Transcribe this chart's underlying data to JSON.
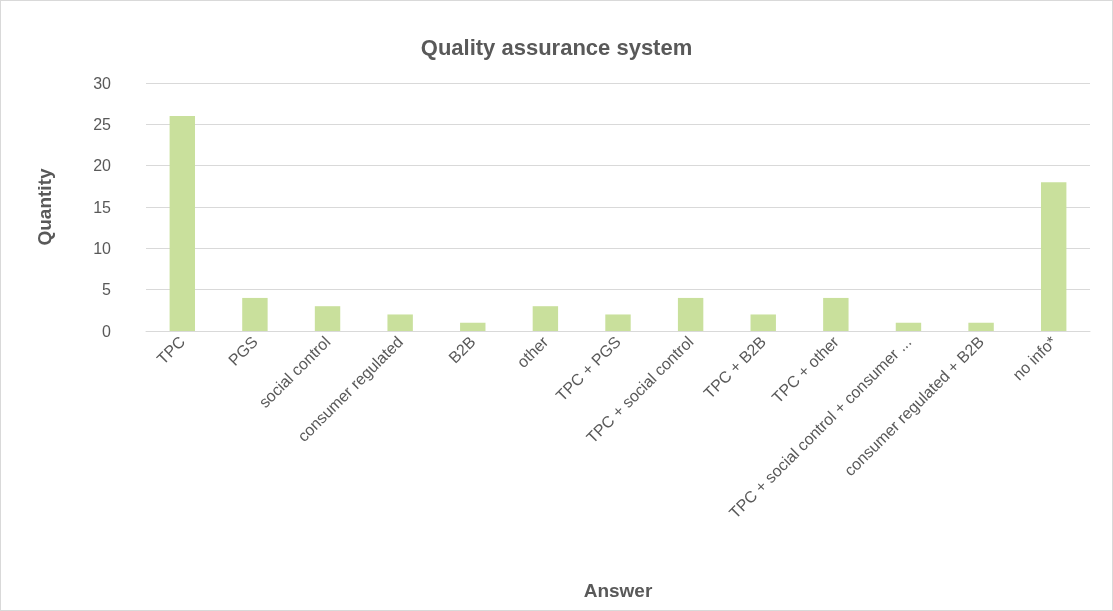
{
  "chart_data": {
    "type": "bar",
    "title": "Quality assurance system",
    "xlabel": "Answer",
    "ylabel": "Quantity",
    "categories": [
      "TPC",
      "PGS",
      "social control",
      "consumer regulated",
      "B2B",
      "other",
      "TPC + PGS",
      "TPC + social control",
      "TPC + B2B",
      "TPC + other",
      "TPC + social control + consumer ...",
      "consumer regulated + B2B",
      "no info*"
    ],
    "values": [
      26,
      4,
      3,
      2,
      1,
      3,
      2,
      4,
      2,
      4,
      1,
      1,
      18
    ],
    "color": "#c9e09c",
    "ylim": [
      0,
      30
    ],
    "yticks": [
      0,
      5,
      10,
      15,
      20,
      25,
      30
    ],
    "grid": "y"
  }
}
